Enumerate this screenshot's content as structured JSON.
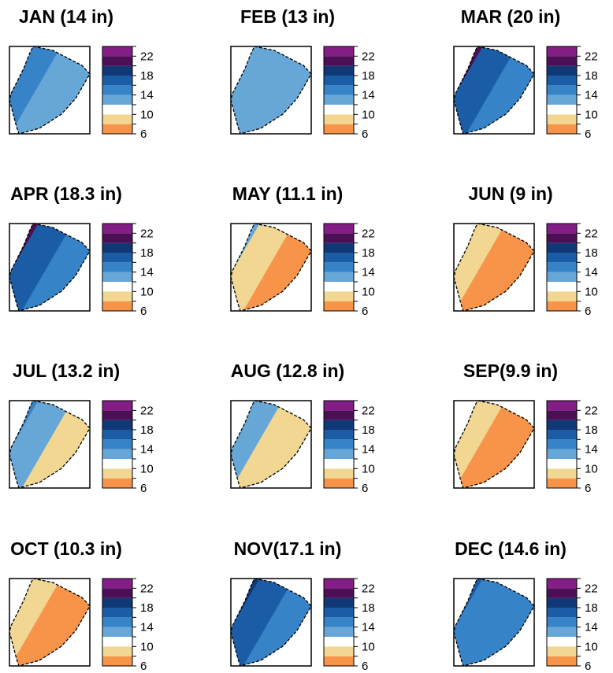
{
  "palette": [
    {
      "from": 6,
      "to": 8,
      "color": "#f7944a"
    },
    {
      "from": 8,
      "to": 10,
      "color": "#f1d791"
    },
    {
      "from": 10,
      "to": 12,
      "color": "#ffffff"
    },
    {
      "from": 12,
      "to": 14,
      "color": "#67a7d8"
    },
    {
      "from": 14,
      "to": 16,
      "color": "#3683c7"
    },
    {
      "from": 16,
      "to": 18,
      "color": "#1a5da6"
    },
    {
      "from": 18,
      "to": 20,
      "color": "#0f3874"
    },
    {
      "from": 20,
      "to": 22,
      "color": "#4c0f55"
    },
    {
      "from": 22,
      "to": 24,
      "color": "#851d86"
    }
  ],
  "chart_data": {
    "type": "heatmap",
    "layout": "small multiples, 4 rows x 3 columns",
    "legend": {
      "min": 6,
      "max": 24,
      "step": 2,
      "tick_labels": [
        "22",
        "18",
        "14",
        "10",
        "6"
      ]
    },
    "panels": [
      {
        "month": "JAN",
        "title": "JAN (14 in)",
        "bands": [
          16,
          15,
          13
        ]
      },
      {
        "month": "FEB",
        "title": "FEB (13 in)",
        "bands": [
          13,
          13,
          13
        ]
      },
      {
        "month": "MAR",
        "title": "MAR (20 in)",
        "bands": [
          23,
          21,
          17,
          15
        ]
      },
      {
        "month": "APR",
        "title": "APR (18.3 in)",
        "bands": [
          23,
          21,
          17,
          15
        ]
      },
      {
        "month": "MAY",
        "title": "MAY (11.1 in)",
        "bands": [
          15,
          13,
          9,
          7
        ]
      },
      {
        "month": "JUN",
        "title": "JUN (9 in)",
        "bands": [
          13,
          9,
          7
        ]
      },
      {
        "month": "JUL",
        "title": "JUL (13.2 in)",
        "bands": [
          16,
          15,
          13,
          9
        ]
      },
      {
        "month": "AUG",
        "title": "AUG (12.8 in)",
        "bands": [
          15,
          13,
          9
        ]
      },
      {
        "month": "SEP",
        "title": "SEP(9.9 in)",
        "bands": [
          13,
          9,
          7
        ]
      },
      {
        "month": "OCT",
        "title": "OCT (10.3 in)",
        "bands": [
          13,
          9,
          7
        ]
      },
      {
        "month": "NOV",
        "title": "NOV(17.1 in)",
        "bands": [
          21,
          18,
          17,
          15
        ]
      },
      {
        "month": "DEC",
        "title": "DEC (14.6 in)",
        "bands": [
          16,
          15
        ]
      }
    ]
  }
}
